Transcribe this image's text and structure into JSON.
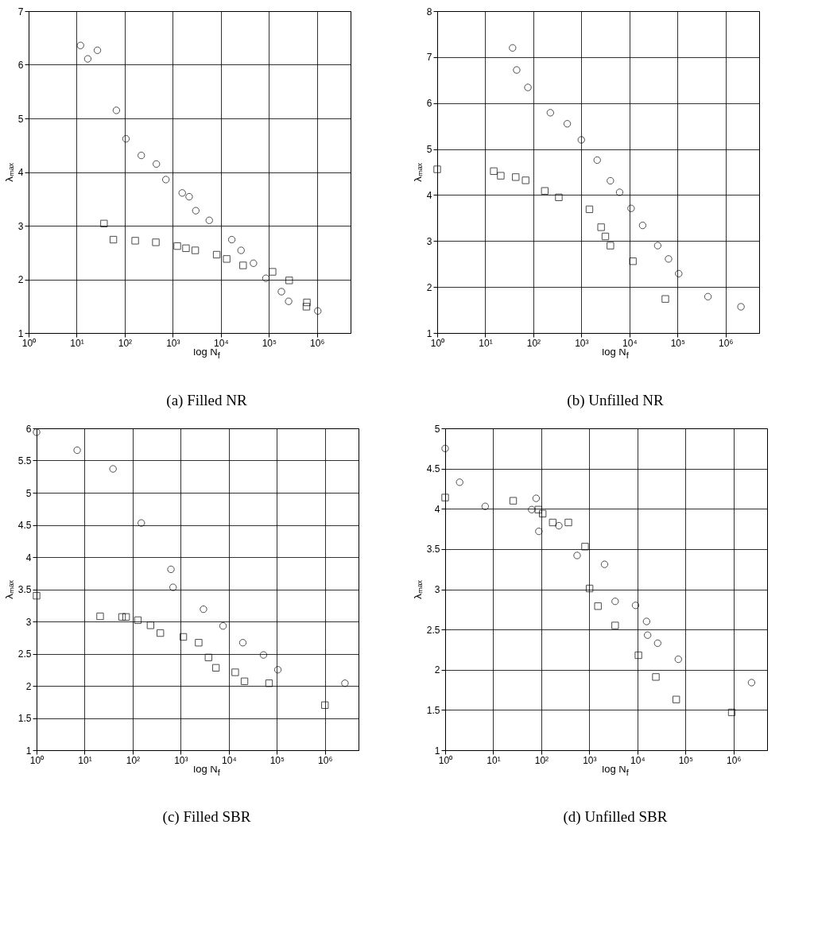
{
  "chart_data": [
    {
      "type": "scatter",
      "title": "(a)  Filled NR",
      "xlabel": "log N$_{f}$",
      "ylabel": "λₘₐₓ",
      "log": "x",
      "grid": true,
      "xlim": [
        1,
        5000000
      ],
      "ylim": [
        1,
        7
      ],
      "xticks": [
        {
          "value": 1,
          "label": "10⁰"
        },
        {
          "value": 10,
          "label": "10¹"
        },
        {
          "value": 100,
          "label": "10²"
        },
        {
          "value": 1000,
          "label": "10³"
        },
        {
          "value": 10000,
          "label": "10⁴"
        },
        {
          "value": 100000,
          "label": "10⁵"
        },
        {
          "value": 1000000,
          "label": "10⁶"
        }
      ],
      "yticks": [
        1,
        2,
        3,
        4,
        5,
        6,
        7
      ],
      "series": [
        {
          "color": "#000000",
          "marker": "circle",
          "x": [
            12,
            17,
            27,
            67,
            106,
            221,
            455,
            718,
            1570,
            2190,
            3010,
            5740,
            16900,
            26300,
            47700,
            86500,
            182000,
            257000,
            1040000
          ],
          "values": [
            6.36,
            6.11,
            6.27,
            5.15,
            4.62,
            4.31,
            4.15,
            3.86,
            3.61,
            3.54,
            3.28,
            3.1,
            2.74,
            2.54,
            2.3,
            2.02,
            1.77,
            1.59,
            1.41
          ]
        },
        {
          "color": "#000000",
          "marker": "square",
          "x": [
            37,
            58,
            165,
            444,
            1240,
            1880,
            2930,
            8180,
            13200,
            29000,
            119000,
            264000,
            617000,
            603000
          ],
          "values": [
            3.04,
            2.74,
            2.72,
            2.69,
            2.62,
            2.58,
            2.54,
            2.46,
            2.38,
            2.26,
            2.14,
            1.98,
            1.57,
            1.49
          ]
        }
      ]
    },
    {
      "type": "scatter",
      "title": "(b)  Unfilled NR",
      "xlabel": "log N$_{f}$",
      "ylabel": "λₘₐₓ",
      "log": "x",
      "grid": true,
      "xlim": [
        1,
        5000000
      ],
      "ylim": [
        1,
        8
      ],
      "xticks": [
        {
          "value": 1,
          "label": "10⁰"
        },
        {
          "value": 10,
          "label": "10¹"
        },
        {
          "value": 100,
          "label": "10²"
        },
        {
          "value": 1000,
          "label": "10³"
        },
        {
          "value": 10000,
          "label": "10⁴"
        },
        {
          "value": 100000,
          "label": "10⁵"
        },
        {
          "value": 1000000,
          "label": "10⁶"
        }
      ],
      "yticks": [
        1,
        2,
        3,
        4,
        5,
        6,
        7,
        8
      ],
      "series": [
        {
          "color": "#000000",
          "marker": "circle",
          "x": [
            37,
            45,
            77,
            226,
            508,
            995,
            2130,
            4010,
            6240,
            10800,
            18800,
            38700,
            65000,
            106000,
            430000,
            2090000
          ],
          "values": [
            7.2,
            6.72,
            6.34,
            5.79,
            5.55,
            5.2,
            4.76,
            4.31,
            4.06,
            3.71,
            3.34,
            2.9,
            2.61,
            2.29,
            1.79,
            1.57
          ]
        },
        {
          "color": "#000000",
          "marker": "square",
          "x": [
            1,
            15,
            21,
            43,
            69,
            173,
            339,
            1470,
            2570,
            3150,
            4010,
            11800,
            55800
          ],
          "values": [
            4.56,
            4.52,
            4.42,
            4.39,
            4.32,
            4.09,
            3.95,
            3.69,
            3.3,
            3.1,
            2.9,
            2.56,
            1.74
          ]
        }
      ]
    },
    {
      "type": "scatter",
      "title": "(c)  Filled SBR",
      "xlabel": "log N$_{f}$",
      "ylabel": "λₘₐₓ",
      "log": "x",
      "grid": true,
      "xlim": [
        1,
        5000000
      ],
      "ylim": [
        1,
        6
      ],
      "xticks": [
        {
          "value": 1,
          "label": "10⁰"
        },
        {
          "value": 10,
          "label": "10¹"
        },
        {
          "value": 100,
          "label": "10²"
        },
        {
          "value": 1000,
          "label": "10³"
        },
        {
          "value": 10000,
          "label": "10⁴"
        },
        {
          "value": 100000,
          "label": "10⁵"
        },
        {
          "value": 1000000,
          "label": "10⁶"
        }
      ],
      "yticks": [
        1,
        1.5,
        2,
        2.5,
        3,
        3.5,
        4,
        4.5,
        5,
        5.5,
        6
      ],
      "series": [
        {
          "color": "#000000",
          "marker": "circle",
          "x": [
            1,
            7,
            39,
            151,
            625,
            692,
            2970,
            7590,
            19600,
            52700,
            105000,
            2610000
          ],
          "values": [
            5.94,
            5.66,
            5.37,
            4.53,
            3.81,
            3.53,
            3.19,
            2.93,
            2.67,
            2.48,
            2.25,
            2.04
          ]
        },
        {
          "color": "#000000",
          "marker": "square",
          "x": [
            1,
            21,
            60,
            73,
            128,
            235,
            376,
            1130,
            2360,
            3780,
            5390,
            13600,
            21200,
            68800,
            1000000
          ],
          "values": [
            3.4,
            3.08,
            3.07,
            3.07,
            3.02,
            2.94,
            2.82,
            2.76,
            2.67,
            2.44,
            2.28,
            2.21,
            2.07,
            2.04,
            1.7
          ]
        }
      ]
    },
    {
      "type": "scatter",
      "title": "(d)  Unfilled SBR",
      "xlabel": "log N$_{f}$",
      "ylabel": "λₘₐₓ",
      "log": "x",
      "grid": true,
      "xlim": [
        1,
        5000000
      ],
      "ylim": [
        1,
        5
      ],
      "xticks": [
        {
          "value": 1,
          "label": "10⁰"
        },
        {
          "value": 10,
          "label": "10¹"
        },
        {
          "value": 100,
          "label": "10²"
        },
        {
          "value": 1000,
          "label": "10³"
        },
        {
          "value": 10000,
          "label": "10⁴"
        },
        {
          "value": 100000,
          "label": "10⁵"
        },
        {
          "value": 1000000,
          "label": "10⁶"
        }
      ],
      "yticks": [
        1,
        1.5,
        2,
        2.5,
        3,
        3.5,
        4,
        4.5,
        5
      ],
      "series": [
        {
          "color": "#000000",
          "marker": "circle",
          "x": [
            1,
            2,
            6.8,
            63,
            78,
            89,
            232,
            556,
            2070,
            3440,
            9150,
            15500,
            16300,
            26400,
            71000,
            2370000
          ],
          "values": [
            4.75,
            4.33,
            4.03,
            3.99,
            4.13,
            3.72,
            3.79,
            3.42,
            3.31,
            2.85,
            2.8,
            2.6,
            2.43,
            2.33,
            2.13,
            1.84
          ]
        },
        {
          "color": "#000000",
          "marker": "square",
          "x": [
            1,
            26,
            87,
            107,
            173,
            366,
            813,
            1010,
            1510,
            3440,
            10500,
            24200,
            64200,
            918000
          ],
          "values": [
            4.14,
            4.1,
            3.99,
            3.94,
            3.83,
            3.83,
            3.53,
            3.01,
            2.79,
            2.55,
            2.18,
            1.91,
            1.63,
            1.47
          ]
        }
      ]
    }
  ]
}
